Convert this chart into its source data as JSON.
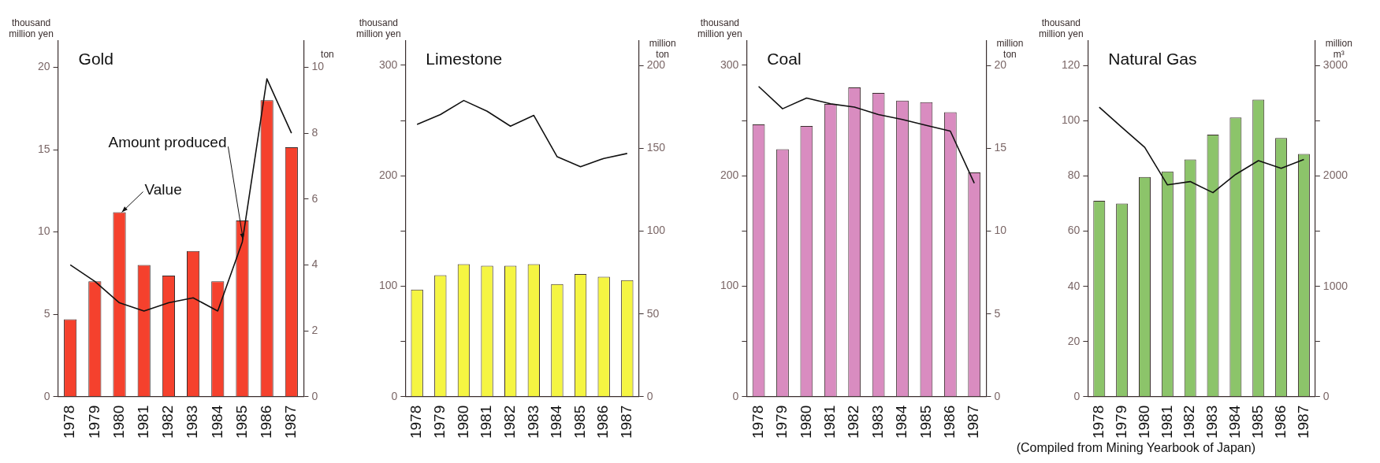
{
  "chart_data": [
    {
      "type": "bar",
      "title": "Gold",
      "ylabel": "thousand million yen",
      "y2label": "ton",
      "categories": [
        "1978",
        "1979",
        "1980",
        "1981",
        "1982",
        "1983",
        "1984",
        "1985",
        "1986",
        "1987"
      ],
      "series": [
        {
          "type": "bar",
          "color": "#f5412d",
          "values": [
            4.7,
            7.0,
            11.2,
            8.0,
            7.35,
            8.85,
            7.0,
            10.7,
            18.0,
            15.15
          ]
        },
        {
          "type": "line",
          "color": "#111111",
          "axis": "y2",
          "values": [
            4.0,
            3.5,
            2.85,
            2.6,
            2.85,
            3.0,
            2.6,
            4.7,
            9.65,
            8.0
          ]
        }
      ],
      "ylim": [
        0,
        21.6
      ],
      "yticks": [
        0,
        5,
        10,
        15,
        20
      ],
      "y2lim": [
        0,
        10.8
      ],
      "y2ticks": [
        0,
        2,
        4,
        6,
        8,
        10
      ],
      "marker": "none",
      "annotations": [
        {
          "text": "Value",
          "x": "1980",
          "y": 11.2
        },
        {
          "text": "Amount produced",
          "x": "1985",
          "y": 9.4
        }
      ]
    },
    {
      "type": "bar",
      "title": "Limestone",
      "ylabel": "thousand million yen",
      "y2label": "million ton",
      "categories": [
        "1978",
        "1979",
        "1980",
        "1981",
        "1982",
        "1983",
        "1984",
        "1985",
        "1986",
        "1987"
      ],
      "series": [
        {
          "type": "bar",
          "color": "#f5f542",
          "values": [
            97,
            110,
            120,
            118.5,
            118.5,
            120,
            102,
            111,
            108.5,
            105.5
          ]
        },
        {
          "type": "line",
          "color": "#111111",
          "axis": "y2",
          "values": [
            164.5,
            170.5,
            179,
            172.5,
            163.5,
            170,
            145,
            139,
            144,
            147
          ]
        }
      ],
      "ylim": [
        0,
        322
      ],
      "yticks": [
        0,
        {
          "value": 50,
          "label": null
        },
        100,
        {
          "value": 150,
          "label": null
        },
        200,
        {
          "value": 250,
          "label": null
        },
        300
      ],
      "y2lim": [
        0,
        215
      ],
      "y2ticks": [
        0,
        50,
        100,
        150,
        200
      ],
      "marker": "none"
    },
    {
      "type": "bar",
      "title": "Coal",
      "ylabel": "thousand million yen",
      "y2label": "million ton",
      "categories": [
        "1978",
        "1979",
        "1980",
        "1981",
        "1982",
        "1983",
        "1984",
        "1985",
        "1986",
        "1987"
      ],
      "series": [
        {
          "type": "bar",
          "color": "#d98cc0",
          "values": [
            246.5,
            224,
            245,
            265,
            280,
            275,
            268,
            266.5,
            257.5,
            203
          ]
        },
        {
          "type": "line",
          "color": "#111111",
          "axis": "y2",
          "values": [
            18.75,
            17.4,
            18.05,
            17.7,
            17.5,
            17.05,
            16.75,
            16.4,
            16.05,
            12.9
          ]
        }
      ],
      "ylim": [
        0,
        322
      ],
      "yticks": [
        0,
        {
          "value": 50,
          "label": null
        },
        100,
        {
          "value": 150,
          "label": null
        },
        200,
        {
          "value": 250,
          "label": null
        },
        300
      ],
      "y2lim": [
        0,
        21.5
      ],
      "y2ticks": [
        0,
        5,
        10,
        15,
        20
      ],
      "marker": "none"
    },
    {
      "type": "bar",
      "title": "Natural Gas",
      "ylabel": "thousand million yen",
      "y2label": "million m³",
      "categories": [
        "1978",
        "1979",
        "1980",
        "1981",
        "1982",
        "1983",
        "1984",
        "1985",
        "1986",
        "1987"
      ],
      "series": [
        {
          "type": "bar",
          "color": "#8cc46a",
          "values": [
            71,
            70,
            79.7,
            81.7,
            86,
            95,
            101.2,
            107.7,
            93.8,
            88
          ]
        },
        {
          "type": "line",
          "color": "#111111",
          "axis": "y2",
          "values": [
            2625,
            2440,
            2260,
            1920,
            1950,
            1850,
            2015,
            2140,
            2070,
            2150
          ]
        }
      ],
      "ylim": [
        0,
        129
      ],
      "yticks": [
        0,
        20,
        40,
        60,
        80,
        100,
        120
      ],
      "y2lim": [
        0,
        3225
      ],
      "y2ticks": [
        0,
        {
          "value": 500,
          "label": null
        },
        1000,
        {
          "value": 1500,
          "label": null
        },
        2000,
        {
          "value": 2500,
          "label": null
        },
        3000
      ],
      "marker": "none"
    },
    {
      "type": "other",
      "annotations": [
        "(Compiled from Mining Yearbook of Japan)"
      ]
    }
  ]
}
